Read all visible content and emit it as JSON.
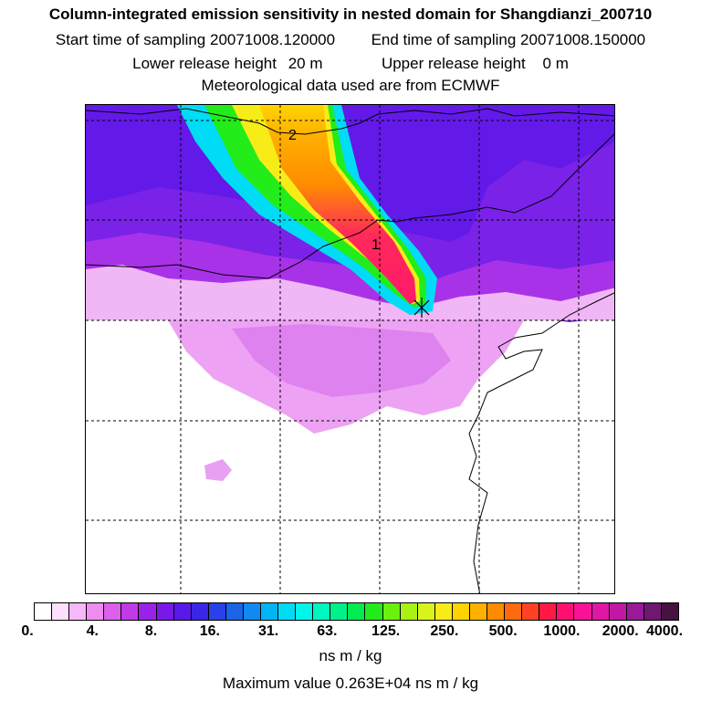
{
  "title": "Column-integrated emission sensitivity in nested domain for Shangdianzi_200710",
  "sampling": {
    "start_label": "Start time of sampling",
    "start_value": "20071008.120000",
    "end_label": "End time of sampling",
    "end_value": "20071008.150000"
  },
  "release": {
    "lower_label": "Lower release height",
    "lower_value": "20 m",
    "upper_label": "Upper release height",
    "upper_value": "0 m"
  },
  "met_source": "Meteorological data used are from ECMWF",
  "map": {
    "contour_labels": [
      "2",
      "1"
    ]
  },
  "colorbar": {
    "tick_labels": [
      "0.",
      "4.",
      "8.",
      "16.",
      "31.",
      "63.",
      "125.",
      "250.",
      "500.",
      "1000.",
      "2000.",
      "4000."
    ],
    "colors": [
      "#ffffff",
      "#fde0fd",
      "#f6b8f6",
      "#ee8cf0",
      "#dd60ec",
      "#c23ae8",
      "#9a22e8",
      "#7a18e8",
      "#5a18e8",
      "#3a26e6",
      "#2a40e8",
      "#1a64e8",
      "#108af0",
      "#00b4f6",
      "#00dcf6",
      "#00f6e6",
      "#00f6c0",
      "#00f08a",
      "#00ec50",
      "#22ec1a",
      "#6cf012",
      "#a8f214",
      "#d8f41a",
      "#f8ec18",
      "#ffd400",
      "#ffb000",
      "#ff8c00",
      "#ff6a10",
      "#ff4224",
      "#ff1a44",
      "#ff1070",
      "#f81296",
      "#e016a4",
      "#c018a4",
      "#981a98",
      "#6e1870",
      "#461244"
    ]
  },
  "units": "ns m / kg",
  "max_value": "Maximum value  0.263E+04 ns m / kg"
}
